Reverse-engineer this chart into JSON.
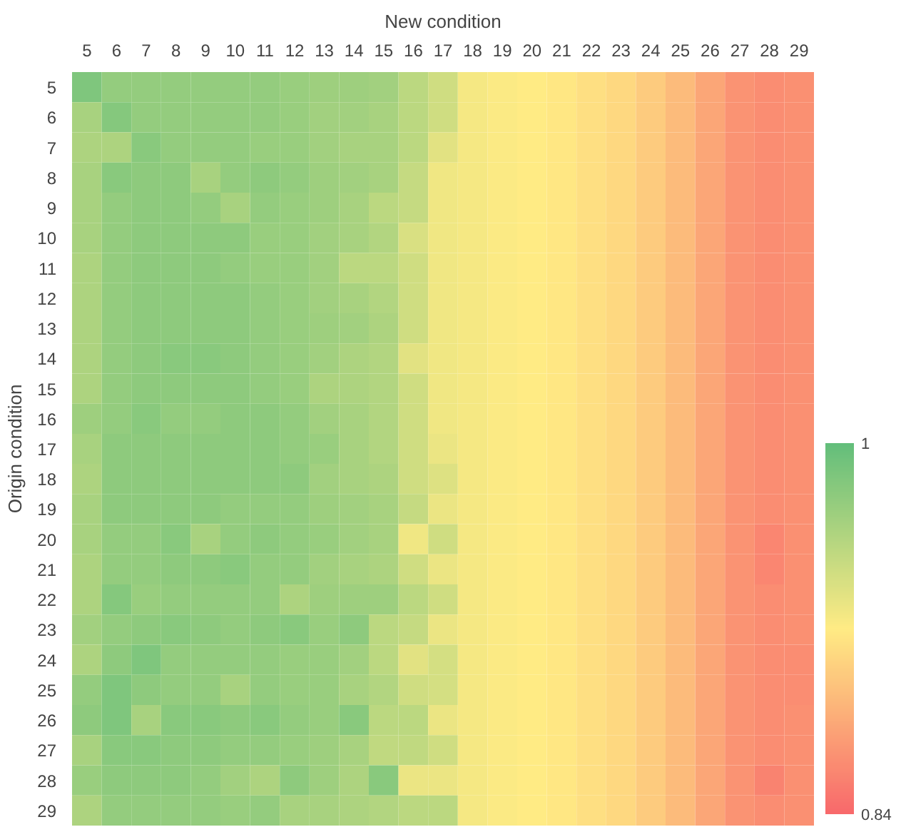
{
  "chart_data": {
    "type": "heatmap",
    "title": "New condition",
    "ylabel": "Origin condition",
    "categories": [
      "5",
      "6",
      "7",
      "8",
      "9",
      "10",
      "11",
      "12",
      "13",
      "14",
      "15",
      "16",
      "17",
      "18",
      "19",
      "20",
      "21",
      "22",
      "23",
      "24",
      "25",
      "26",
      "27",
      "28",
      "29"
    ],
    "y_categories": [
      "5",
      "6",
      "7",
      "8",
      "9",
      "10",
      "11",
      "12",
      "13",
      "14",
      "15",
      "16",
      "17",
      "18",
      "19",
      "20",
      "21",
      "22",
      "23",
      "24",
      "25",
      "26",
      "27",
      "28",
      "29"
    ],
    "cells": [
      [
        0.985,
        0.975,
        0.975,
        0.975,
        0.975,
        0.975,
        0.975,
        0.972,
        0.97,
        0.97,
        0.968,
        0.955,
        0.945,
        0.925,
        0.922,
        0.92,
        0.917,
        0.912,
        0.908,
        0.9,
        0.89,
        0.878,
        0.866,
        0.862,
        0.864
      ],
      [
        0.965,
        0.982,
        0.975,
        0.975,
        0.975,
        0.975,
        0.975,
        0.972,
        0.968,
        0.968,
        0.965,
        0.955,
        0.945,
        0.925,
        0.922,
        0.92,
        0.917,
        0.912,
        0.908,
        0.9,
        0.89,
        0.878,
        0.866,
        0.862,
        0.864
      ],
      [
        0.962,
        0.962,
        0.98,
        0.975,
        0.975,
        0.975,
        0.972,
        0.972,
        0.968,
        0.965,
        0.965,
        0.955,
        0.935,
        0.925,
        0.922,
        0.92,
        0.917,
        0.912,
        0.908,
        0.9,
        0.89,
        0.878,
        0.866,
        0.862,
        0.864
      ],
      [
        0.965,
        0.98,
        0.978,
        0.978,
        0.965,
        0.975,
        0.978,
        0.975,
        0.97,
        0.968,
        0.965,
        0.95,
        0.928,
        0.925,
        0.922,
        0.92,
        0.917,
        0.912,
        0.908,
        0.9,
        0.89,
        0.878,
        0.866,
        0.862,
        0.864
      ],
      [
        0.965,
        0.975,
        0.978,
        0.978,
        0.975,
        0.965,
        0.975,
        0.972,
        0.97,
        0.965,
        0.955,
        0.95,
        0.928,
        0.925,
        0.922,
        0.92,
        0.917,
        0.912,
        0.908,
        0.9,
        0.89,
        0.878,
        0.866,
        0.862,
        0.864
      ],
      [
        0.965,
        0.975,
        0.978,
        0.978,
        0.978,
        0.978,
        0.972,
        0.972,
        0.968,
        0.965,
        0.96,
        0.94,
        0.928,
        0.925,
        0.922,
        0.92,
        0.917,
        0.912,
        0.908,
        0.9,
        0.89,
        0.878,
        0.866,
        0.862,
        0.864
      ],
      [
        0.962,
        0.975,
        0.978,
        0.978,
        0.978,
        0.975,
        0.972,
        0.972,
        0.968,
        0.955,
        0.955,
        0.945,
        0.928,
        0.925,
        0.922,
        0.92,
        0.917,
        0.912,
        0.908,
        0.9,
        0.89,
        0.878,
        0.866,
        0.862,
        0.864
      ],
      [
        0.962,
        0.975,
        0.978,
        0.978,
        0.978,
        0.978,
        0.975,
        0.972,
        0.968,
        0.965,
        0.96,
        0.945,
        0.928,
        0.925,
        0.922,
        0.92,
        0.917,
        0.912,
        0.908,
        0.9,
        0.89,
        0.878,
        0.866,
        0.862,
        0.864
      ],
      [
        0.962,
        0.975,
        0.978,
        0.978,
        0.978,
        0.978,
        0.975,
        0.972,
        0.97,
        0.968,
        0.962,
        0.945,
        0.928,
        0.925,
        0.922,
        0.92,
        0.917,
        0.912,
        0.908,
        0.9,
        0.89,
        0.878,
        0.866,
        0.862,
        0.864
      ],
      [
        0.962,
        0.975,
        0.978,
        0.98,
        0.98,
        0.978,
        0.975,
        0.972,
        0.968,
        0.962,
        0.96,
        0.935,
        0.928,
        0.925,
        0.922,
        0.92,
        0.917,
        0.912,
        0.908,
        0.9,
        0.89,
        0.878,
        0.866,
        0.862,
        0.864
      ],
      [
        0.962,
        0.975,
        0.978,
        0.978,
        0.978,
        0.978,
        0.975,
        0.972,
        0.962,
        0.962,
        0.96,
        0.945,
        0.928,
        0.925,
        0.922,
        0.92,
        0.917,
        0.912,
        0.908,
        0.9,
        0.89,
        0.878,
        0.866,
        0.862,
        0.864
      ],
      [
        0.97,
        0.975,
        0.98,
        0.975,
        0.975,
        0.978,
        0.978,
        0.975,
        0.968,
        0.965,
        0.96,
        0.945,
        0.928,
        0.925,
        0.922,
        0.92,
        0.917,
        0.912,
        0.908,
        0.9,
        0.89,
        0.878,
        0.866,
        0.862,
        0.864
      ],
      [
        0.965,
        0.978,
        0.978,
        0.978,
        0.978,
        0.978,
        0.978,
        0.975,
        0.972,
        0.965,
        0.96,
        0.945,
        0.93,
        0.925,
        0.922,
        0.92,
        0.917,
        0.912,
        0.908,
        0.9,
        0.89,
        0.878,
        0.866,
        0.862,
        0.864
      ],
      [
        0.962,
        0.978,
        0.978,
        0.978,
        0.978,
        0.978,
        0.978,
        0.978,
        0.968,
        0.965,
        0.962,
        0.945,
        0.938,
        0.925,
        0.922,
        0.92,
        0.917,
        0.912,
        0.908,
        0.9,
        0.89,
        0.878,
        0.866,
        0.862,
        0.864
      ],
      [
        0.965,
        0.978,
        0.978,
        0.978,
        0.978,
        0.975,
        0.975,
        0.975,
        0.97,
        0.968,
        0.965,
        0.95,
        0.93,
        0.925,
        0.922,
        0.92,
        0.917,
        0.912,
        0.908,
        0.9,
        0.89,
        0.878,
        0.866,
        0.862,
        0.864
      ],
      [
        0.965,
        0.975,
        0.975,
        0.98,
        0.965,
        0.975,
        0.978,
        0.975,
        0.972,
        0.968,
        0.965,
        0.928,
        0.945,
        0.925,
        0.922,
        0.92,
        0.917,
        0.912,
        0.908,
        0.9,
        0.89,
        0.878,
        0.866,
        0.858,
        0.864
      ],
      [
        0.962,
        0.975,
        0.975,
        0.978,
        0.978,
        0.98,
        0.975,
        0.975,
        0.968,
        0.965,
        0.962,
        0.945,
        0.93,
        0.925,
        0.922,
        0.92,
        0.917,
        0.912,
        0.908,
        0.9,
        0.89,
        0.878,
        0.866,
        0.858,
        0.864
      ],
      [
        0.962,
        0.982,
        0.972,
        0.975,
        0.975,
        0.975,
        0.975,
        0.962,
        0.97,
        0.97,
        0.97,
        0.955,
        0.945,
        0.925,
        0.922,
        0.92,
        0.917,
        0.912,
        0.908,
        0.9,
        0.89,
        0.878,
        0.866,
        0.862,
        0.864
      ],
      [
        0.968,
        0.975,
        0.978,
        0.98,
        0.978,
        0.975,
        0.978,
        0.98,
        0.972,
        0.978,
        0.955,
        0.95,
        0.93,
        0.925,
        0.922,
        0.92,
        0.917,
        0.912,
        0.908,
        0.9,
        0.89,
        0.878,
        0.866,
        0.862,
        0.864
      ],
      [
        0.962,
        0.978,
        0.985,
        0.975,
        0.975,
        0.975,
        0.975,
        0.972,
        0.972,
        0.968,
        0.955,
        0.935,
        0.942,
        0.925,
        0.922,
        0.92,
        0.917,
        0.912,
        0.908,
        0.9,
        0.89,
        0.878,
        0.866,
        0.862,
        0.862
      ],
      [
        0.975,
        0.985,
        0.978,
        0.975,
        0.975,
        0.965,
        0.975,
        0.972,
        0.972,
        0.965,
        0.96,
        0.945,
        0.942,
        0.925,
        0.922,
        0.92,
        0.917,
        0.912,
        0.908,
        0.9,
        0.89,
        0.878,
        0.866,
        0.862,
        0.862
      ],
      [
        0.978,
        0.985,
        0.965,
        0.98,
        0.98,
        0.978,
        0.98,
        0.975,
        0.972,
        0.98,
        0.955,
        0.955,
        0.93,
        0.925,
        0.922,
        0.92,
        0.917,
        0.912,
        0.908,
        0.9,
        0.89,
        0.878,
        0.866,
        0.862,
        0.864
      ],
      [
        0.965,
        0.98,
        0.98,
        0.978,
        0.978,
        0.975,
        0.975,
        0.972,
        0.97,
        0.965,
        0.952,
        0.952,
        0.945,
        0.925,
        0.922,
        0.92,
        0.917,
        0.912,
        0.908,
        0.9,
        0.89,
        0.878,
        0.866,
        0.862,
        0.864
      ],
      [
        0.972,
        0.978,
        0.978,
        0.978,
        0.975,
        0.968,
        0.962,
        0.978,
        0.97,
        0.962,
        0.98,
        0.93,
        0.93,
        0.925,
        0.922,
        0.92,
        0.917,
        0.912,
        0.908,
        0.9,
        0.89,
        0.878,
        0.866,
        0.856,
        0.864
      ],
      [
        0.962,
        0.975,
        0.975,
        0.975,
        0.975,
        0.972,
        0.975,
        0.965,
        0.965,
        0.962,
        0.96,
        0.955,
        0.955,
        0.925,
        0.922,
        0.92,
        0.917,
        0.912,
        0.908,
        0.9,
        0.89,
        0.878,
        0.866,
        0.862,
        0.864
      ]
    ],
    "clim": [
      0.84,
      1
    ],
    "cticks": [
      {
        "value": 1,
        "label": "1"
      },
      {
        "value": 0.84,
        "label": "0.84"
      }
    ]
  }
}
